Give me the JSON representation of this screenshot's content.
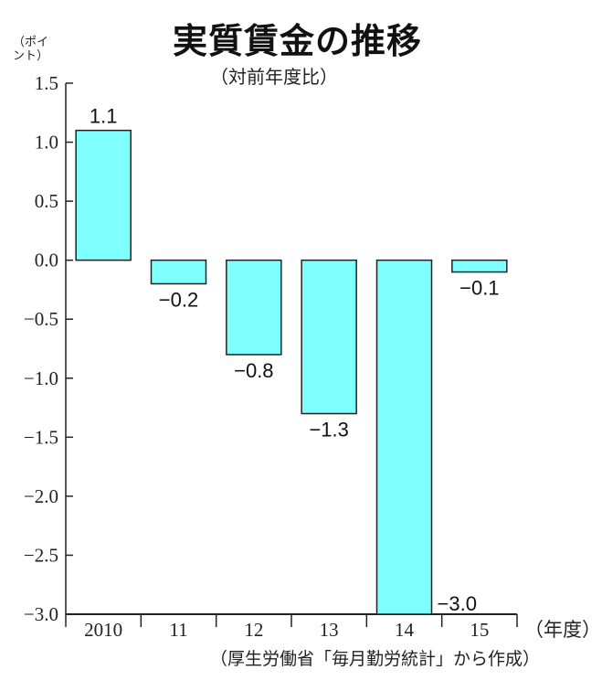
{
  "chart_data": {
    "type": "bar",
    "title": "実質賃金の推移",
    "subtitle": "（対前年度比）",
    "ylabel": "（ポイント）",
    "xlabel": "（年度）",
    "source": "（厚生労働省「毎月勤労統計」から作成）",
    "categories": [
      "2010",
      "11",
      "12",
      "13",
      "14",
      "15"
    ],
    "values": [
      1.1,
      -0.2,
      -0.8,
      -1.3,
      -3.0,
      -0.1
    ],
    "data_labels": [
      "1.1",
      "−0.2",
      "−0.8",
      "−1.3",
      "−3.0",
      "−0.1"
    ],
    "ylim": [
      -3.0,
      1.5
    ],
    "yticks": [
      1.5,
      1.0,
      0.5,
      0.0,
      -0.5,
      -1.0,
      -1.5,
      -2.0,
      -2.5,
      -3.0
    ],
    "ytick_labels": [
      "1.5",
      "1.0",
      "0.5",
      "0.0",
      "−0.5",
      "−1.0",
      "−1.5",
      "−2.0",
      "−2.5",
      "−3.0"
    ],
    "grid": false,
    "bar_color": "#80ffff",
    "edge_color": "#222222"
  }
}
